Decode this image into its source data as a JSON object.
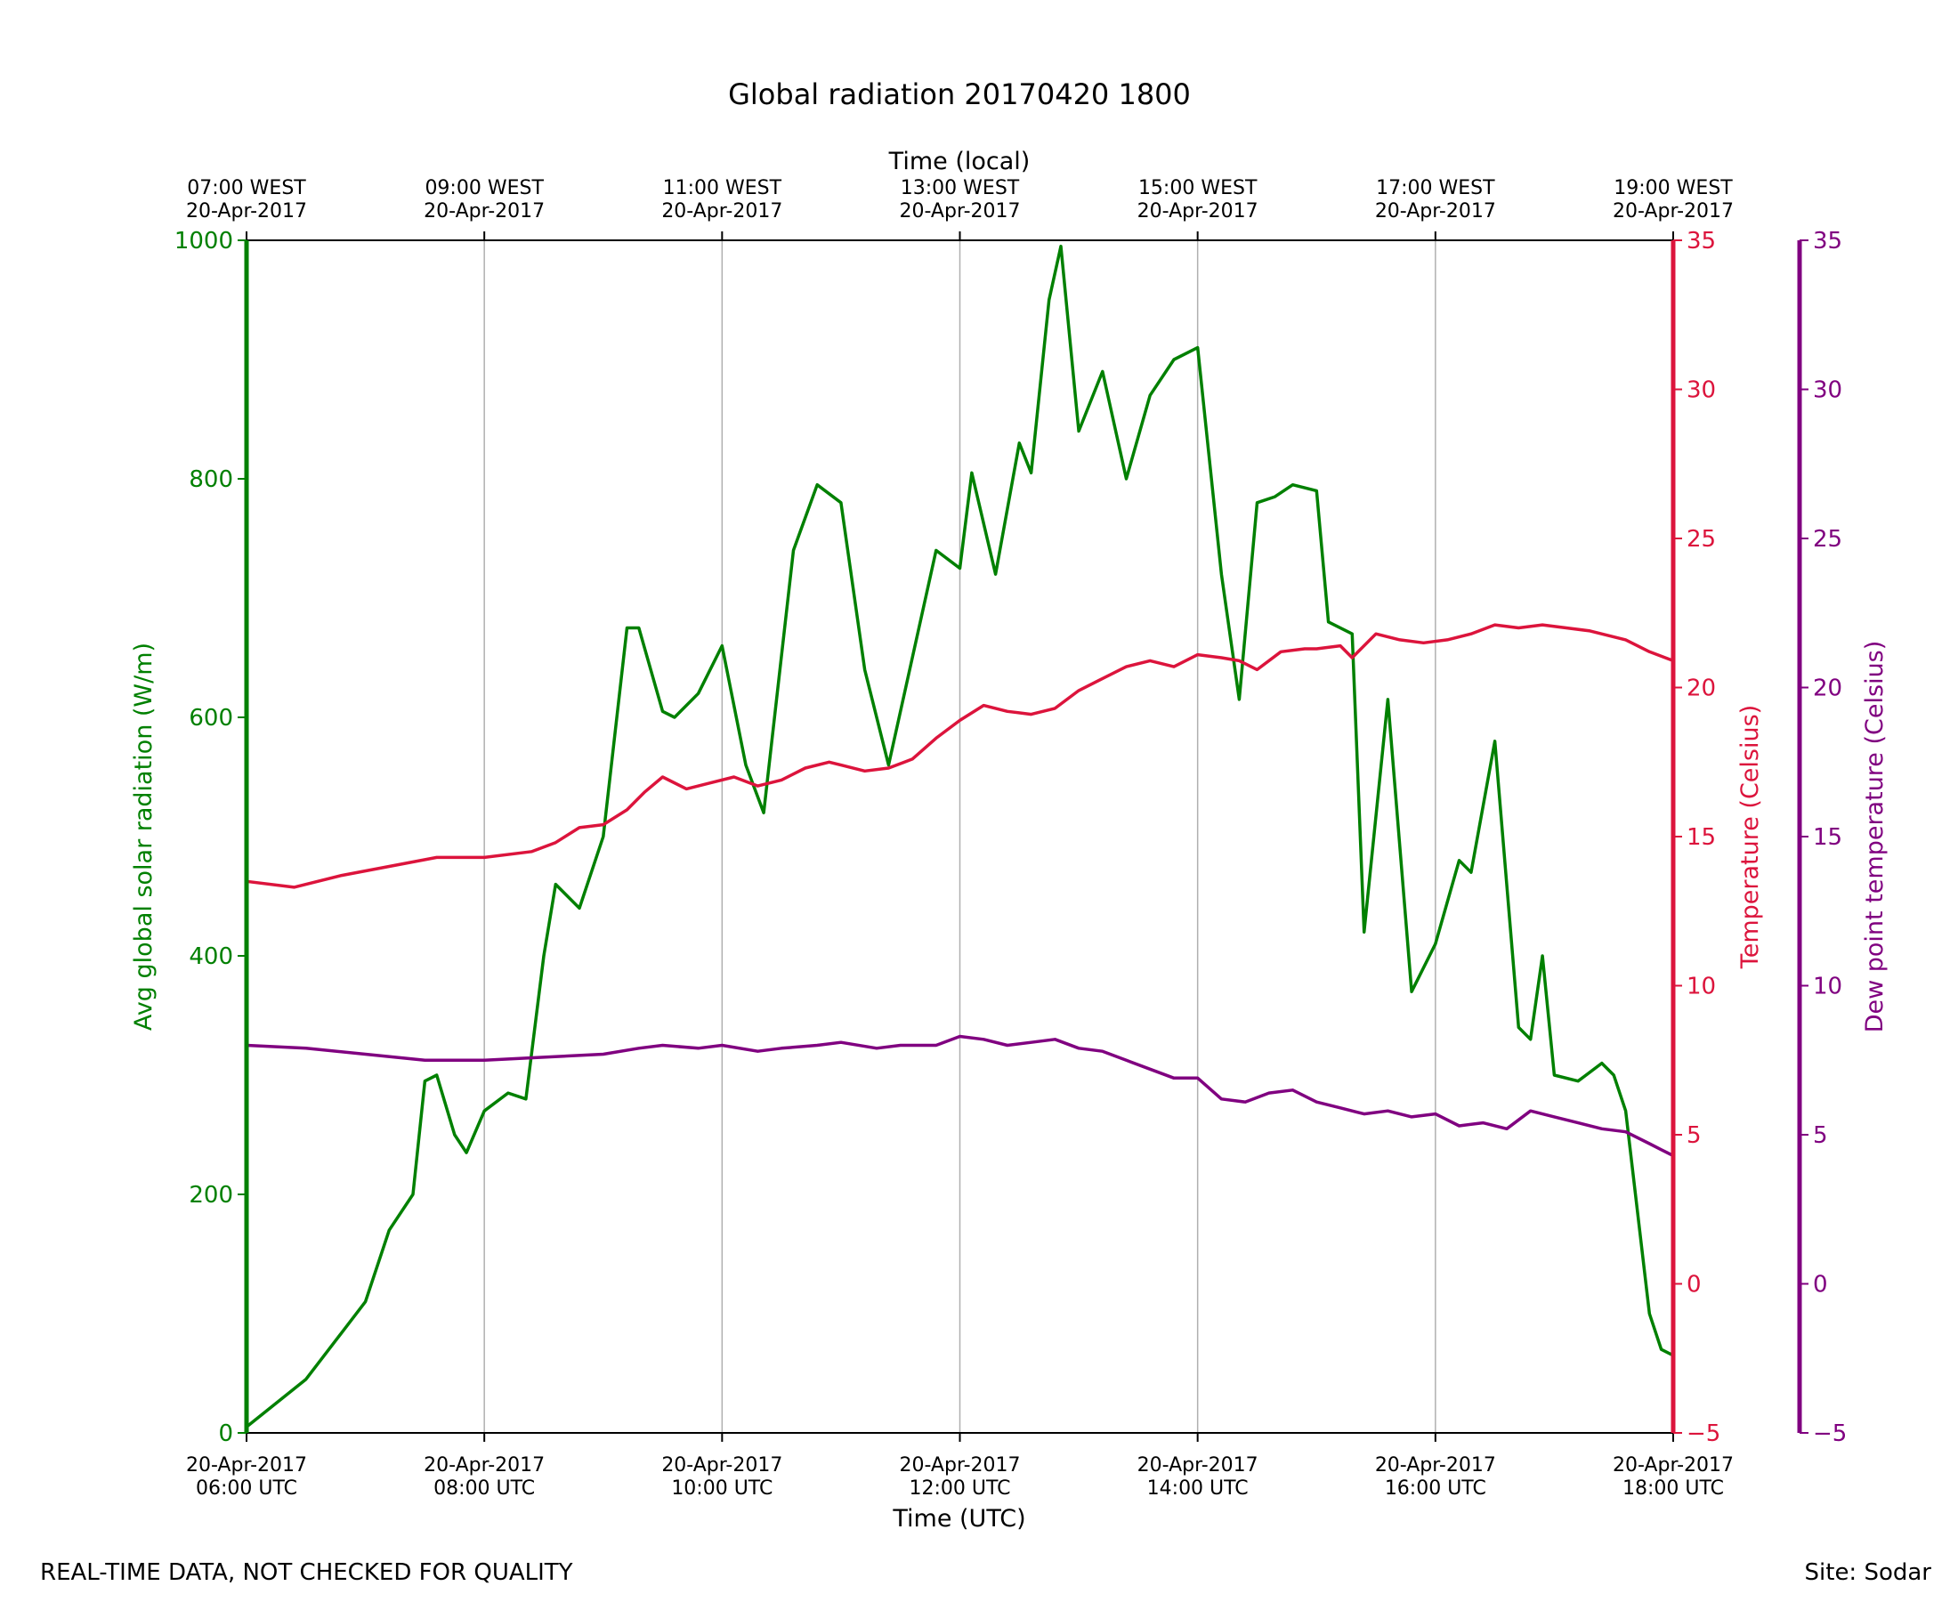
{
  "chart_data": {
    "type": "line",
    "title": "Global radiation 20170420 1800",
    "xlabel": "Time (UTC)",
    "xlabel_top": "Time (local)",
    "x_range_hours_utc": [
      6,
      18
    ],
    "x_ticks_bottom": [
      {
        "hour": 6,
        "line1": "20-Apr-2017",
        "line2": "06:00 UTC"
      },
      {
        "hour": 8,
        "line1": "20-Apr-2017",
        "line2": "08:00 UTC"
      },
      {
        "hour": 10,
        "line1": "20-Apr-2017",
        "line2": "10:00 UTC"
      },
      {
        "hour": 12,
        "line1": "20-Apr-2017",
        "line2": "12:00 UTC"
      },
      {
        "hour": 14,
        "line1": "20-Apr-2017",
        "line2": "14:00 UTC"
      },
      {
        "hour": 16,
        "line1": "20-Apr-2017",
        "line2": "16:00 UTC"
      },
      {
        "hour": 18,
        "line1": "20-Apr-2017",
        "line2": "18:00 UTC"
      }
    ],
    "x_ticks_top": [
      {
        "hour": 6,
        "line1": "07:00 WEST",
        "line2": "20-Apr-2017"
      },
      {
        "hour": 8,
        "line1": "09:00 WEST",
        "line2": "20-Apr-2017"
      },
      {
        "hour": 10,
        "line1": "11:00 WEST",
        "line2": "20-Apr-2017"
      },
      {
        "hour": 12,
        "line1": "13:00 WEST",
        "line2": "20-Apr-2017"
      },
      {
        "hour": 14,
        "line1": "15:00 WEST",
        "line2": "20-Apr-2017"
      },
      {
        "hour": 16,
        "line1": "17:00 WEST",
        "line2": "20-Apr-2017"
      },
      {
        "hour": 18,
        "line1": "19:00 WEST",
        "line2": "20-Apr-2017"
      }
    ],
    "axes": {
      "radiation": {
        "label": "Avg global solar radiation (W/m)",
        "ylim": [
          0,
          1000
        ],
        "ticks": [
          0,
          200,
          400,
          600,
          800,
          1000
        ],
        "color": "#008000"
      },
      "temperature": {
        "label": "Temperature (Celsius)",
        "ylim": [
          -5,
          35
        ],
        "ticks": [
          -5,
          0,
          5,
          10,
          15,
          20,
          25,
          30,
          35
        ],
        "color": "#dc143c"
      },
      "dewpoint": {
        "label": "Dew point temperature (Celsius)",
        "ylim": [
          -5,
          35
        ],
        "ticks": [
          -5,
          0,
          5,
          10,
          15,
          20,
          25,
          30,
          35
        ],
        "color": "#800080"
      }
    },
    "series": [
      {
        "name": "Avg global solar radiation",
        "axis": "radiation",
        "color": "#008000",
        "x": [
          6.0,
          6.5,
          7.0,
          7.2,
          7.4,
          7.5,
          7.6,
          7.75,
          7.85,
          8.0,
          8.2,
          8.35,
          8.5,
          8.6,
          8.8,
          9.0,
          9.2,
          9.3,
          9.5,
          9.6,
          9.8,
          10.0,
          10.2,
          10.35,
          10.6,
          10.8,
          11.0,
          11.2,
          11.4,
          11.6,
          11.8,
          12.0,
          12.1,
          12.3,
          12.5,
          12.6,
          12.75,
          12.85,
          13.0,
          13.2,
          13.4,
          13.6,
          13.8,
          14.0,
          14.2,
          14.35,
          14.5,
          14.65,
          14.8,
          15.0,
          15.1,
          15.3,
          15.4,
          15.6,
          15.8,
          16.0,
          16.2,
          16.3,
          16.5,
          16.7,
          16.8,
          16.9,
          17.0,
          17.2,
          17.4,
          17.5,
          17.6,
          17.8,
          17.9,
          18.0
        ],
        "y": [
          5,
          45,
          110,
          170,
          200,
          295,
          300,
          250,
          235,
          270,
          285,
          280,
          400,
          460,
          440,
          500,
          675,
          675,
          605,
          600,
          620,
          660,
          560,
          520,
          740,
          795,
          780,
          640,
          560,
          650,
          740,
          725,
          805,
          720,
          830,
          805,
          950,
          995,
          840,
          890,
          800,
          870,
          900,
          910,
          720,
          615,
          780,
          785,
          795,
          790,
          680,
          670,
          420,
          615,
          370,
          410,
          480,
          470,
          580,
          340,
          330,
          400,
          300,
          295,
          310,
          300,
          270,
          100,
          70,
          65
        ]
      },
      {
        "name": "Temperature",
        "axis": "temperature",
        "color": "#dc143c",
        "x": [
          6.0,
          6.4,
          6.8,
          7.2,
          7.6,
          8.0,
          8.4,
          8.6,
          8.8,
          9.0,
          9.2,
          9.35,
          9.5,
          9.7,
          9.9,
          10.1,
          10.3,
          10.5,
          10.7,
          10.9,
          11.0,
          11.2,
          11.4,
          11.6,
          11.8,
          12.0,
          12.2,
          12.4,
          12.6,
          12.8,
          13.0,
          13.2,
          13.4,
          13.6,
          13.8,
          14.0,
          14.2,
          14.35,
          14.5,
          14.7,
          14.9,
          15.0,
          15.2,
          15.3,
          15.5,
          15.7,
          15.9,
          16.1,
          16.3,
          16.5,
          16.7,
          16.9,
          17.1,
          17.3,
          17.6,
          17.8,
          18.0
        ],
        "y": [
          13.5,
          13.3,
          13.7,
          14.0,
          14.3,
          14.3,
          14.5,
          14.8,
          15.3,
          15.4,
          15.9,
          16.5,
          17.0,
          16.6,
          16.8,
          17.0,
          16.7,
          16.9,
          17.3,
          17.5,
          17.4,
          17.2,
          17.3,
          17.6,
          18.3,
          18.9,
          19.4,
          19.2,
          19.1,
          19.3,
          19.9,
          20.3,
          20.7,
          20.9,
          20.7,
          21.1,
          21.0,
          20.9,
          20.6,
          21.2,
          21.3,
          21.3,
          21.4,
          21.0,
          21.8,
          21.6,
          21.5,
          21.6,
          21.8,
          22.1,
          22.0,
          22.1,
          22.0,
          21.9,
          21.6,
          21.2,
          20.9
        ]
      },
      {
        "name": "Dew point temperature",
        "axis": "dewpoint",
        "color": "#800080",
        "x": [
          6.0,
          6.5,
          7.0,
          7.5,
          8.0,
          8.5,
          9.0,
          9.3,
          9.5,
          9.8,
          10.0,
          10.3,
          10.5,
          10.8,
          11.0,
          11.3,
          11.5,
          11.8,
          12.0,
          12.2,
          12.4,
          12.6,
          12.8,
          13.0,
          13.2,
          13.4,
          13.6,
          13.8,
          14.0,
          14.2,
          14.4,
          14.6,
          14.8,
          15.0,
          15.2,
          15.4,
          15.6,
          15.8,
          16.0,
          16.2,
          16.4,
          16.6,
          16.8,
          17.0,
          17.2,
          17.4,
          17.6,
          17.8,
          17.9,
          18.0
        ],
        "y": [
          8.0,
          7.9,
          7.7,
          7.5,
          7.5,
          7.6,
          7.7,
          7.9,
          8.0,
          7.9,
          8.0,
          7.8,
          7.9,
          8.0,
          8.1,
          7.9,
          8.0,
          8.0,
          8.3,
          8.2,
          8.0,
          8.1,
          8.2,
          7.9,
          7.8,
          7.5,
          7.2,
          6.9,
          6.9,
          6.2,
          6.1,
          6.4,
          6.5,
          6.1,
          5.9,
          5.7,
          5.8,
          5.6,
          5.7,
          5.3,
          5.4,
          5.2,
          5.8,
          5.6,
          5.4,
          5.2,
          5.1,
          4.7,
          4.5,
          4.3
        ]
      }
    ],
    "grid": "vertical"
  },
  "footer": {
    "left_note": "REAL-TIME DATA, NOT CHECKED FOR QUALITY",
    "site": "Site: Sodar"
  }
}
